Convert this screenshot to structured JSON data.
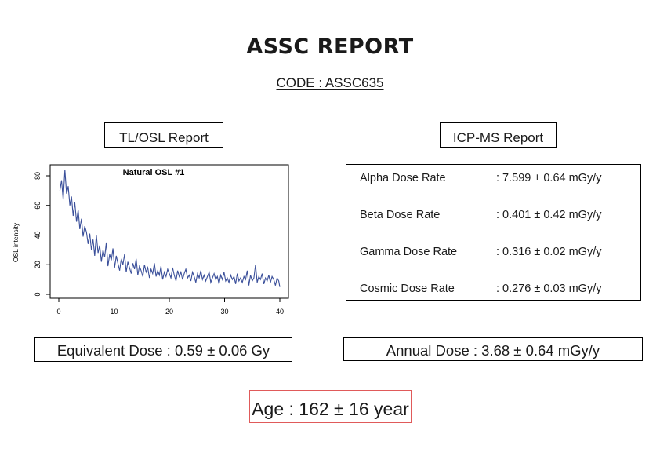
{
  "report": {
    "title": "ASSC REPORT",
    "code": "CODE : ASSC635"
  },
  "tl_osl": {
    "label": "TL/OSL Report",
    "equivalent_dose": "Equivalent Dose : 0.59 ± 0.06 Gy"
  },
  "icp_ms": {
    "label": "ICP-MS Report",
    "rows": [
      {
        "name": "Alpha Dose Rate",
        "value": ": 7.599 ± 0.64 mGy/y"
      },
      {
        "name": "Beta Dose Rate",
        "value": ": 0.401 ± 0.42 mGy/y"
      },
      {
        "name": "Gamma Dose Rate",
        "value": ": 0.316 ± 0.02 mGy/y"
      },
      {
        "name": "Cosmic Dose Rate",
        "value": ": 0.276 ± 0.03 mGy/y"
      }
    ],
    "annual_dose": "Annual Dose : 3.68 ± 0.64 mGy/y"
  },
  "age": "Age : 162 ± 16 year",
  "chart_data": {
    "type": "line",
    "title": "Natural OSL #1",
    "xlabel": "",
    "ylabel": "OSL intensity",
    "xlim": [
      0,
      40
    ],
    "ylim": [
      0,
      85
    ],
    "xticks": [
      0,
      10,
      20,
      30,
      40
    ],
    "yticks": [
      0,
      20,
      40,
      60,
      80
    ],
    "grid": false,
    "line_color": "#3a4f9a",
    "series": [
      {
        "x": [
          0.2,
          0.5,
          0.8,
          1.1,
          1.4,
          1.7,
          2.0,
          2.3,
          2.6,
          2.9,
          3.2,
          3.5,
          3.8,
          4.1,
          4.4,
          4.7,
          5.0,
          5.3,
          5.6,
          5.9,
          6.2,
          6.5,
          6.8,
          7.1,
          7.4,
          7.7,
          8.0,
          8.3,
          8.6,
          8.9,
          9.2,
          9.5,
          9.8,
          10.1,
          10.4,
          10.7,
          11.0,
          11.3,
          11.6,
          11.9,
          12.2,
          12.5,
          12.8,
          13.1,
          13.4,
          13.7,
          14.0,
          14.3,
          14.6,
          14.9,
          15.2,
          15.5,
          15.8,
          16.1,
          16.4,
          16.7,
          17.0,
          17.3,
          17.6,
          17.9,
          18.2,
          18.5,
          18.8,
          19.1,
          19.4,
          19.7,
          20.0,
          20.3,
          20.6,
          20.9,
          21.2,
          21.5,
          21.8,
          22.1,
          22.4,
          22.7,
          23.0,
          23.3,
          23.6,
          23.9,
          24.2,
          24.5,
          24.8,
          25.1,
          25.4,
          25.7,
          26.0,
          26.3,
          26.6,
          26.9,
          27.2,
          27.5,
          27.8,
          28.1,
          28.4,
          28.7,
          29.0,
          29.3,
          29.6,
          29.9,
          30.2,
          30.5,
          30.8,
          31.1,
          31.4,
          31.7,
          32.0,
          32.3,
          32.6,
          32.9,
          33.2,
          33.5,
          33.8,
          34.1,
          34.4,
          34.7,
          35.0,
          35.3,
          35.6,
          35.9,
          36.2,
          36.5,
          36.8,
          37.1,
          37.4,
          37.7,
          38.0,
          38.3,
          38.6,
          38.9,
          39.2,
          39.5,
          39.8,
          40.0
        ],
        "y": [
          70,
          77,
          64,
          84,
          68,
          73,
          60,
          66,
          53,
          62,
          49,
          57,
          44,
          51,
          39,
          46,
          42,
          34,
          41,
          30,
          37,
          26,
          40,
          28,
          33,
          22,
          30,
          25,
          35,
          19,
          27,
          23,
          31,
          18,
          26,
          21,
          16,
          24,
          20,
          27,
          15,
          22,
          18,
          14,
          21,
          17,
          24,
          13,
          19,
          16,
          12,
          20,
          15,
          18,
          11,
          17,
          14,
          21,
          12,
          16,
          13,
          19,
          10,
          15,
          12,
          17,
          14,
          11,
          18,
          13,
          9,
          16,
          12,
          15,
          10,
          14,
          17,
          11,
          13,
          9,
          15,
          12,
          8,
          14,
          11,
          16,
          10,
          13,
          9,
          12,
          15,
          8,
          11,
          14,
          10,
          12,
          7,
          13,
          10,
          15,
          9,
          11,
          8,
          13,
          10,
          12,
          7,
          14,
          9,
          11,
          8,
          12,
          10,
          16,
          6,
          13,
          9,
          11,
          20,
          8,
          12,
          10,
          14,
          7,
          11,
          9,
          13,
          8,
          12,
          10,
          6,
          11,
          9,
          5
        ]
      }
    ]
  }
}
